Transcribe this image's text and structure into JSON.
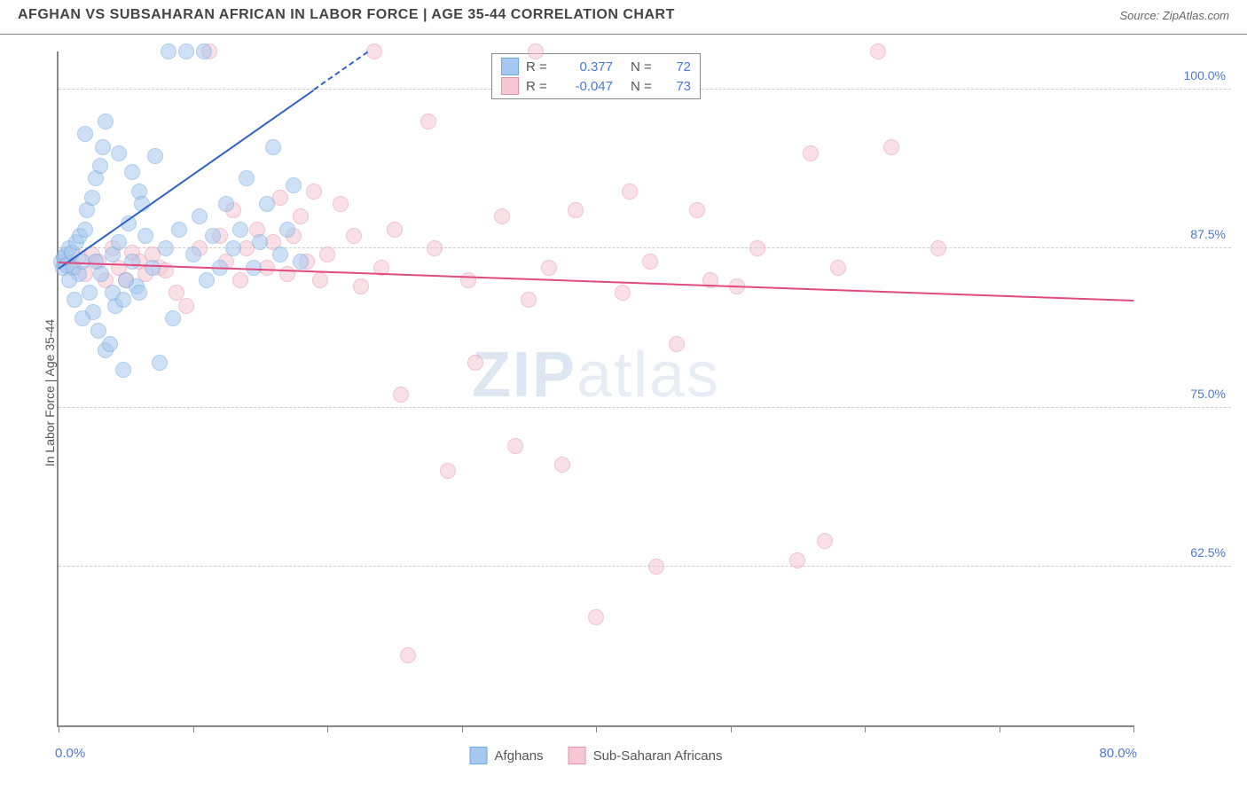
{
  "header": {
    "title": "AFGHAN VS SUBSAHARAN AFRICAN IN LABOR FORCE | AGE 35-44 CORRELATION CHART",
    "source": "Source: ZipAtlas.com"
  },
  "chart": {
    "type": "scatter",
    "ylabel": "In Labor Force | Age 35-44",
    "xlim": [
      0,
      80
    ],
    "ylim": [
      50,
      103
    ],
    "xticks": [
      0,
      10,
      20,
      30,
      40,
      50,
      60,
      70,
      80
    ],
    "yticks": [
      62.5,
      75.0,
      87.5,
      100.0
    ],
    "xaxis_end_labels": {
      "left": "0.0%",
      "right": "80.0%"
    },
    "ytick_format": "%.1f%%",
    "background_color": "#ffffff",
    "grid_color": "#cccccc",
    "axis_color": "#888888",
    "label_color": "#555555",
    "tick_label_color": "#4a7bd0",
    "marker_size": 18,
    "marker_opacity": 0.55,
    "watermark": {
      "text_bold": "ZIP",
      "text_rest": "atlas"
    }
  },
  "series": {
    "afghans": {
      "label": "Afghans",
      "fill": "#a7c8ee",
      "stroke": "#6fa6df",
      "r_value": "0.377",
      "n_value": "72",
      "trend": {
        "x1": 0,
        "y1": 86.0,
        "x2": 23,
        "y2": 103.0,
        "color": "#2f63c9",
        "width": 2.5,
        "dash_from_x": 19
      },
      "points": [
        [
          0.2,
          86.5
        ],
        [
          0.3,
          86.0
        ],
        [
          0.4,
          86.8
        ],
        [
          0.5,
          87.0
        ],
        [
          0.6,
          86.2
        ],
        [
          0.8,
          87.5
        ],
        [
          1.0,
          87.2
        ],
        [
          1.1,
          86.0
        ],
        [
          1.3,
          88.0
        ],
        [
          1.5,
          85.5
        ],
        [
          1.6,
          88.5
        ],
        [
          1.8,
          86.5
        ],
        [
          2.0,
          89.0
        ],
        [
          2.1,
          90.5
        ],
        [
          2.3,
          84.0
        ],
        [
          2.5,
          91.5
        ],
        [
          2.6,
          82.5
        ],
        [
          2.8,
          93.0
        ],
        [
          3.0,
          81.0
        ],
        [
          3.1,
          94.0
        ],
        [
          3.3,
          95.5
        ],
        [
          3.5,
          79.5
        ],
        [
          3.8,
          80.0
        ],
        [
          4.0,
          87.0
        ],
        [
          4.2,
          83.0
        ],
        [
          4.5,
          88.0
        ],
        [
          4.8,
          78.0
        ],
        [
          5.0,
          85.0
        ],
        [
          5.2,
          89.5
        ],
        [
          5.5,
          86.5
        ],
        [
          5.8,
          84.5
        ],
        [
          6.0,
          92.0
        ],
        [
          6.5,
          88.5
        ],
        [
          7.0,
          86.0
        ],
        [
          7.2,
          94.8
        ],
        [
          7.5,
          78.5
        ],
        [
          8.0,
          87.5
        ],
        [
          8.2,
          103.0
        ],
        [
          8.5,
          82.0
        ],
        [
          9.0,
          89.0
        ],
        [
          9.5,
          103.0
        ],
        [
          10.0,
          87.0
        ],
        [
          10.5,
          90.0
        ],
        [
          10.8,
          103.0
        ],
        [
          11.0,
          85.0
        ],
        [
          11.5,
          88.5
        ],
        [
          12.0,
          86.0
        ],
        [
          12.5,
          91.0
        ],
        [
          13.0,
          87.5
        ],
        [
          13.5,
          89.0
        ],
        [
          14.0,
          93.0
        ],
        [
          14.5,
          86.0
        ],
        [
          15.0,
          88.0
        ],
        [
          15.5,
          91.0
        ],
        [
          16.0,
          95.5
        ],
        [
          16.5,
          87.0
        ],
        [
          17.0,
          89.0
        ],
        [
          17.5,
          92.5
        ],
        [
          18.0,
          86.5
        ],
        [
          2.0,
          96.5
        ],
        [
          3.5,
          97.5
        ],
        [
          4.5,
          95.0
        ],
        [
          5.5,
          93.5
        ],
        [
          6.2,
          91.0
        ],
        [
          1.2,
          83.5
        ],
        [
          1.8,
          82.0
        ],
        [
          0.8,
          85.0
        ],
        [
          2.8,
          86.5
        ],
        [
          3.2,
          85.5
        ],
        [
          4.0,
          84.0
        ],
        [
          4.8,
          83.5
        ],
        [
          6.0,
          84.0
        ]
      ]
    },
    "subsaharan": {
      "label": "Sub-Saharan Africans",
      "fill": "#f5c8d4",
      "stroke": "#e693ac",
      "r_value": "-0.047",
      "n_value": "73",
      "trend": {
        "x1": 0,
        "y1": 86.5,
        "x2": 80,
        "y2": 83.5,
        "color": "#e04a7e",
        "width": 2.5
      },
      "points": [
        [
          0.5,
          86.5
        ],
        [
          1.0,
          86.0
        ],
        [
          1.5,
          86.8
        ],
        [
          2.0,
          85.5
        ],
        [
          2.5,
          87.0
        ],
        [
          3.0,
          86.5
        ],
        [
          3.5,
          85.0
        ],
        [
          4.0,
          87.5
        ],
        [
          4.5,
          86.0
        ],
        [
          5.0,
          85.0
        ],
        [
          5.5,
          87.2
        ],
        [
          6.0,
          86.5
        ],
        [
          6.5,
          85.5
        ],
        [
          7.0,
          87.0
        ],
        [
          7.5,
          86.0
        ],
        [
          8.0,
          85.8
        ],
        [
          8.8,
          84.0
        ],
        [
          9.5,
          83.0
        ],
        [
          10.5,
          87.5
        ],
        [
          11.2,
          103.0
        ],
        [
          12.0,
          88.5
        ],
        [
          12.5,
          86.5
        ],
        [
          13.0,
          90.5
        ],
        [
          13.5,
          85.0
        ],
        [
          14.0,
          87.5
        ],
        [
          14.8,
          89.0
        ],
        [
          15.5,
          86.0
        ],
        [
          16.0,
          88.0
        ],
        [
          16.5,
          91.5
        ],
        [
          17.0,
          85.5
        ],
        [
          17.5,
          88.5
        ],
        [
          18.0,
          90.0
        ],
        [
          18.5,
          86.5
        ],
        [
          19.0,
          92.0
        ],
        [
          19.5,
          85.0
        ],
        [
          20.0,
          87.0
        ],
        [
          21.0,
          91.0
        ],
        [
          22.0,
          88.5
        ],
        [
          22.5,
          84.5
        ],
        [
          23.5,
          103.0
        ],
        [
          24.0,
          86.0
        ],
        [
          25.0,
          89.0
        ],
        [
          25.5,
          76.0
        ],
        [
          26.0,
          55.5
        ],
        [
          27.5,
          97.5
        ],
        [
          28.0,
          87.5
        ],
        [
          29.0,
          70.0
        ],
        [
          30.5,
          85.0
        ],
        [
          31.0,
          78.5
        ],
        [
          33.0,
          90.0
        ],
        [
          34.0,
          72.0
        ],
        [
          35.0,
          83.5
        ],
        [
          35.5,
          103.0
        ],
        [
          36.5,
          86.0
        ],
        [
          37.5,
          70.5
        ],
        [
          38.5,
          90.5
        ],
        [
          40.0,
          58.5
        ],
        [
          42.0,
          84.0
        ],
        [
          42.5,
          92.0
        ],
        [
          44.0,
          86.5
        ],
        [
          44.5,
          62.5
        ],
        [
          46.0,
          80.0
        ],
        [
          47.5,
          90.5
        ],
        [
          48.5,
          85.0
        ],
        [
          50.5,
          84.5
        ],
        [
          52.0,
          87.5
        ],
        [
          55.0,
          63.0
        ],
        [
          56.0,
          95.0
        ],
        [
          58.0,
          86.0
        ],
        [
          57.0,
          64.5
        ],
        [
          61.0,
          103.0
        ],
        [
          62.0,
          95.5
        ],
        [
          65.5,
          87.5
        ]
      ]
    }
  },
  "legend_top": {
    "rows": [
      {
        "series": "afghans",
        "r_label": "R =",
        "n_label": "N ="
      },
      {
        "series": "subsaharan",
        "r_label": "R =",
        "n_label": "N ="
      }
    ]
  },
  "legend_bottom": [
    "afghans",
    "subsaharan"
  ]
}
